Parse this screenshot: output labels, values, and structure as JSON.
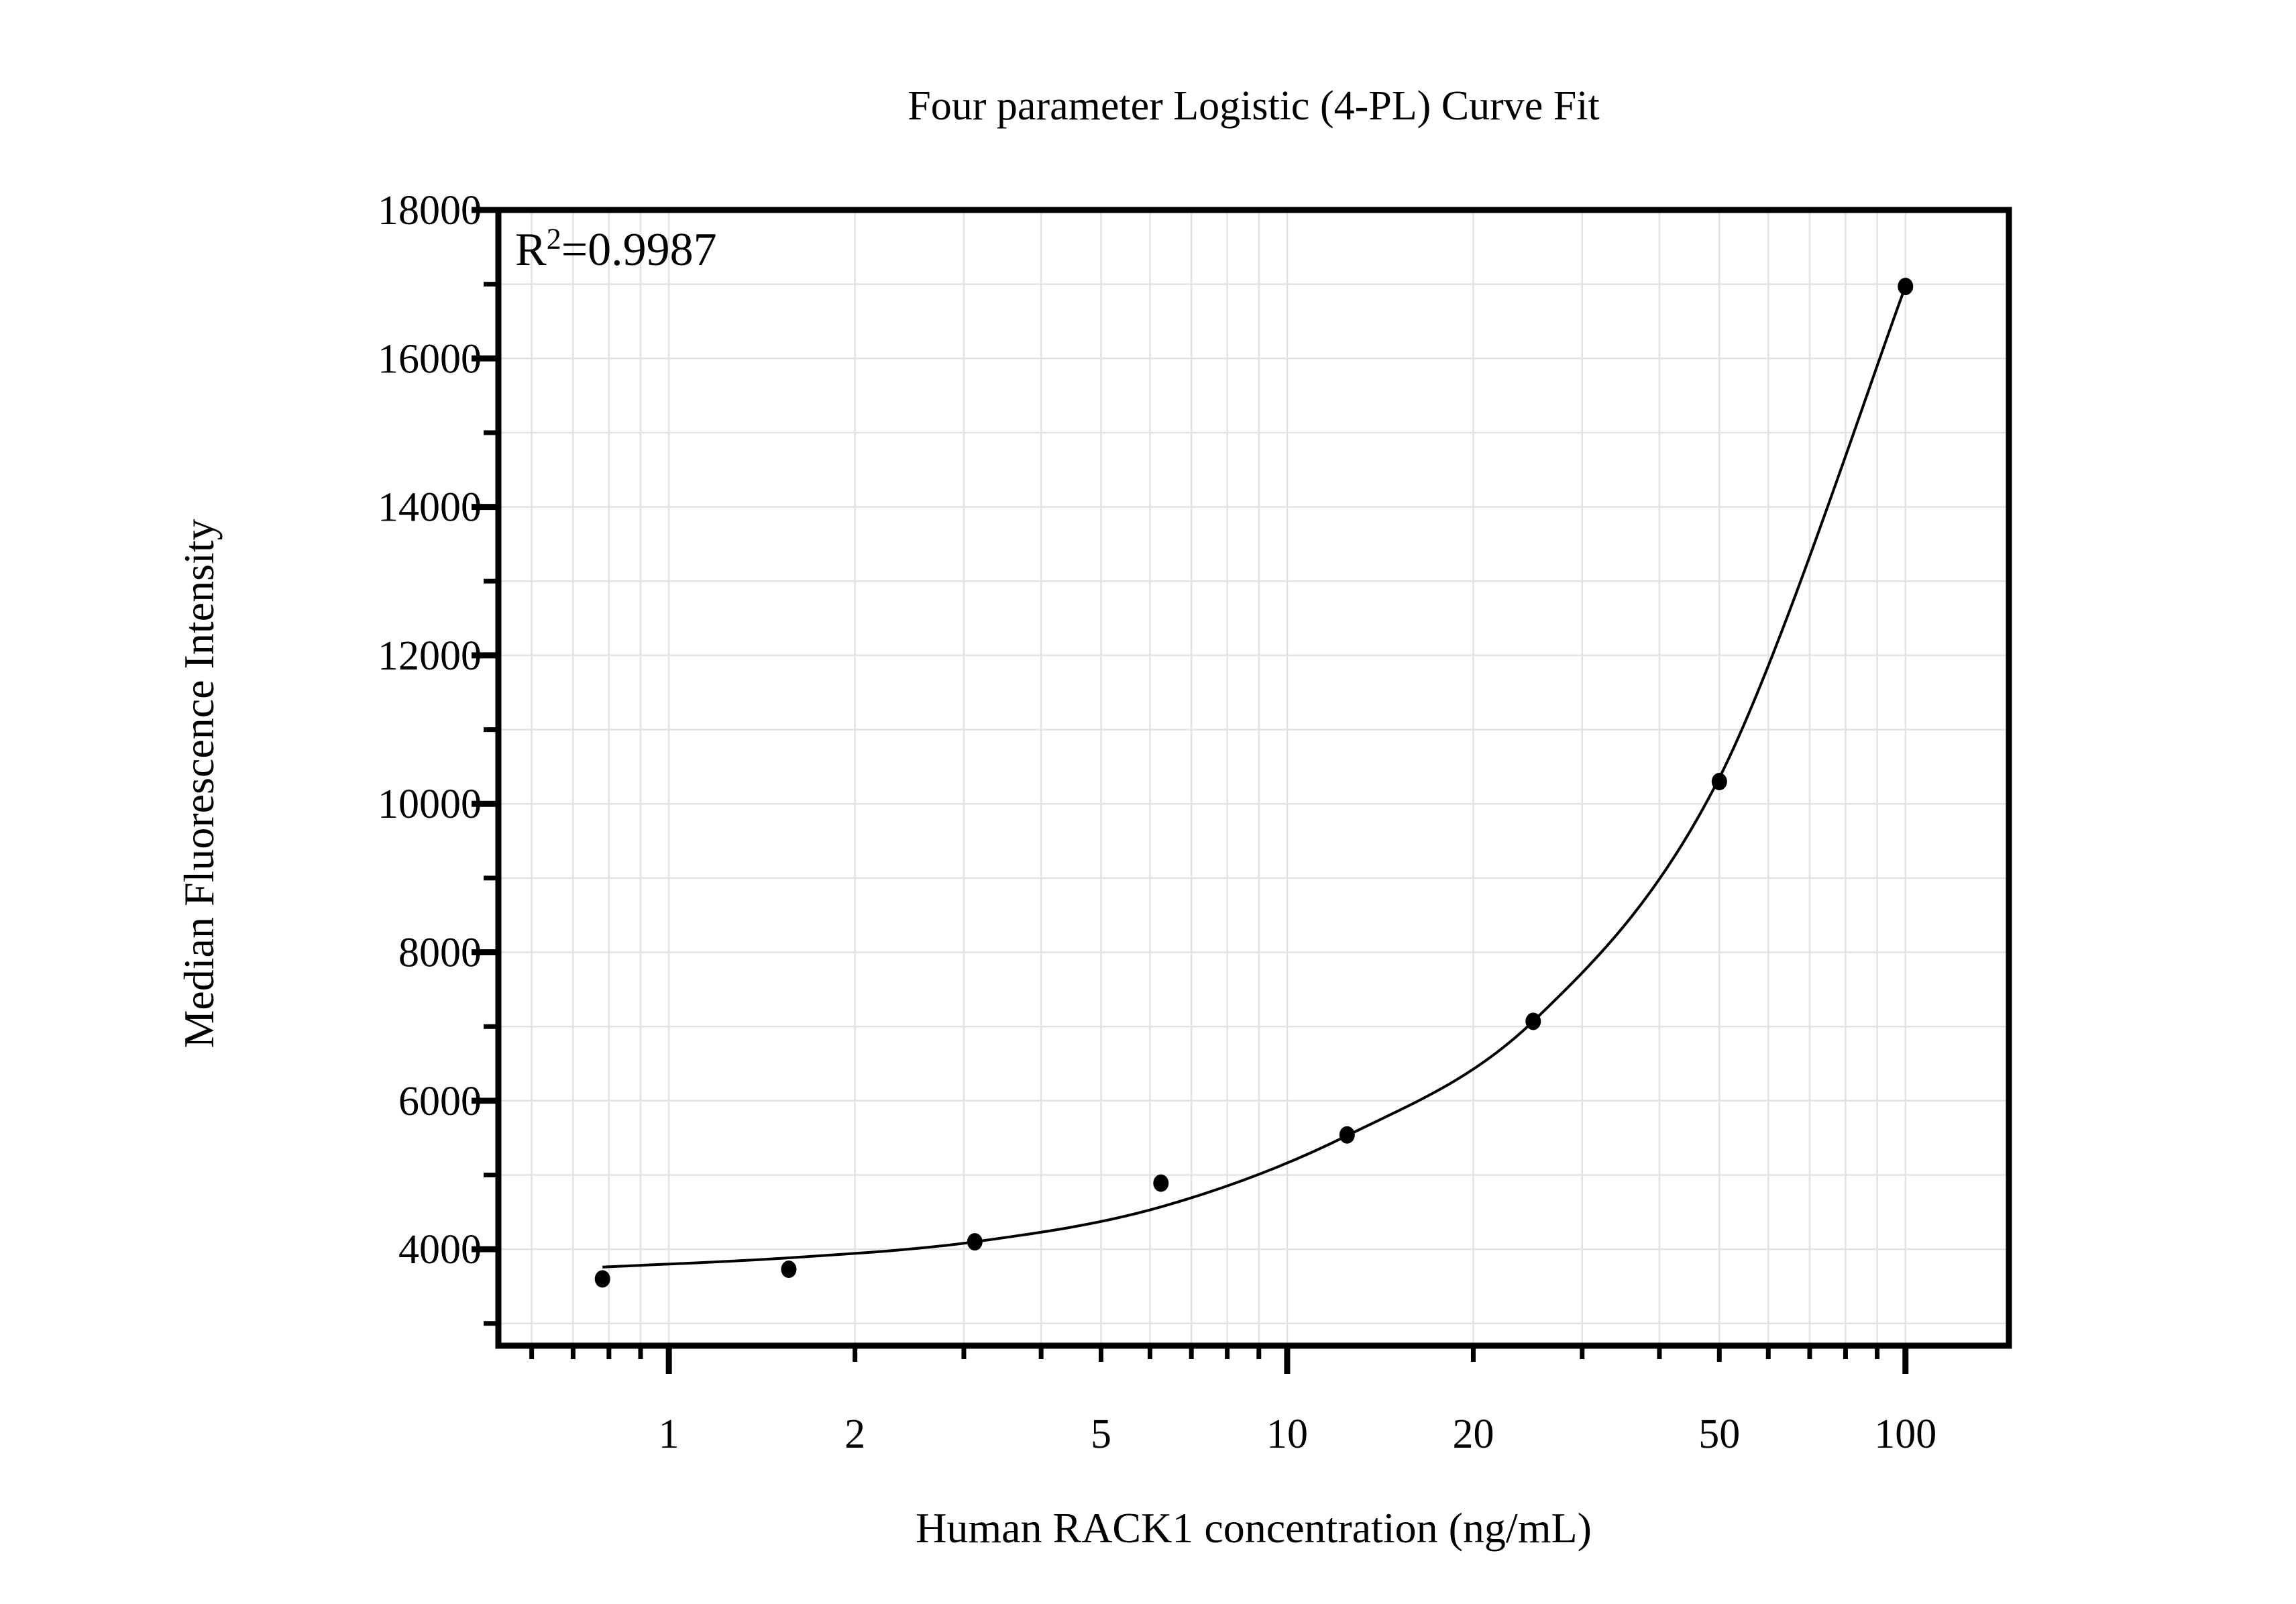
{
  "chart_data": {
    "type": "scatter",
    "title": "Four parameter Logistic (4-PL) Curve Fit",
    "xlabel": "Human RACK1 concentration (ng/mL)",
    "ylabel": "Median Fluorescence Intensity",
    "annotation": "R²=0.9987",
    "annotation_parts": {
      "prefix": "R",
      "sup": "2",
      "value": "=0.9987"
    },
    "x_scale": "log",
    "y_scale": "linear",
    "xlim": [
      0.53,
      147
    ],
    "ylim": [
      2700,
      18000
    ],
    "grid": true,
    "legend": "none",
    "x_ticks_labeled": [
      1,
      2,
      5,
      10,
      20,
      50,
      100
    ],
    "x_tick_labels": [
      "1",
      "2",
      "5",
      "10",
      "20",
      "50",
      "100"
    ],
    "x_ticks_decade": [
      1,
      10,
      100
    ],
    "x_ticks_minor": [
      0.6,
      0.7,
      0.8,
      0.9,
      3,
      4,
      6,
      7,
      8,
      9,
      30,
      40,
      60,
      70,
      80,
      90
    ],
    "y_ticks_major": [
      4000,
      6000,
      8000,
      10000,
      12000,
      14000,
      16000,
      18000
    ],
    "y_tick_labels": [
      "4000",
      "6000",
      "8000",
      "10000",
      "12000",
      "14000",
      "16000",
      "18000"
    ],
    "y_ticks_minor": [
      3000,
      5000,
      7000,
      9000,
      11000,
      13000,
      15000,
      17000
    ],
    "series": [
      {
        "name": "Standard data points",
        "marker": "filled-circle",
        "points": [
          {
            "x": 0.781,
            "y": 3600
          },
          {
            "x": 1.563,
            "y": 3730
          },
          {
            "x": 3.125,
            "y": 4100
          },
          {
            "x": 6.25,
            "y": 4890
          },
          {
            "x": 12.5,
            "y": 5540
          },
          {
            "x": 25,
            "y": 7070
          },
          {
            "x": 50,
            "y": 10300
          },
          {
            "x": 100,
            "y": 16970
          }
        ]
      },
      {
        "name": "4-PL fitted curve",
        "marker": "none",
        "points": [
          {
            "x": 0.781,
            "y": 3760
          },
          {
            "x": 1.563,
            "y": 3884
          },
          {
            "x": 3.125,
            "y": 4100
          },
          {
            "x": 6.25,
            "y": 4570
          },
          {
            "x": 12.5,
            "y": 5530
          },
          {
            "x": 25,
            "y": 7070
          },
          {
            "x": 50,
            "y": 10350
          },
          {
            "x": 100,
            "y": 16970
          }
        ]
      }
    ],
    "colors": {
      "background": "#ffffff",
      "axis": "#000000",
      "text": "#000000",
      "points": "#000000",
      "curve": "#000000",
      "grid": "#e3e3e3"
    }
  }
}
